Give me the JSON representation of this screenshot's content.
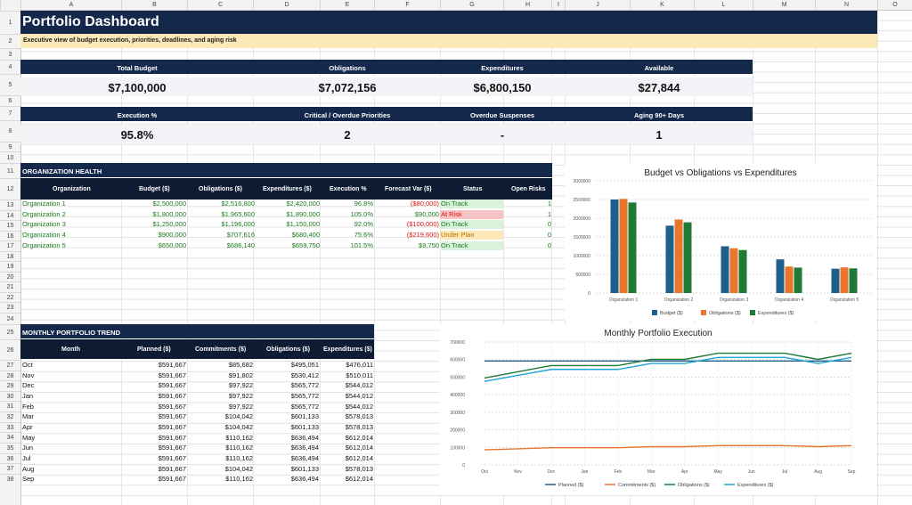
{
  "columns": [
    "",
    "A",
    "B",
    "C",
    "D",
    "E",
    "F",
    "G",
    "H",
    "I",
    "J",
    "K",
    "L",
    "M",
    "N",
    "O"
  ],
  "rows": [
    "1",
    "2",
    "3",
    "4",
    "5",
    "6",
    "7",
    "8",
    "9",
    "10",
    "11",
    "12",
    "13",
    "14",
    "15",
    "16",
    "17",
    "18",
    "19",
    "20",
    "21",
    "22",
    "23",
    "24",
    "25",
    "26",
    "27",
    "28",
    "29",
    "30",
    "31",
    "32",
    "33",
    "34",
    "35",
    "36",
    "37",
    "38"
  ],
  "title": "Portfolio Dashboard",
  "subtitle": "Executive view of budget execution, priorities, deadlines, and aging risk",
  "kpis1": [
    {
      "label": "Total Budget",
      "value": "$7,100,000"
    },
    {
      "label": "Obligations",
      "value": "$7,072,156"
    },
    {
      "label": "Expenditures",
      "value": "$6,800,150"
    },
    {
      "label": "Available",
      "value": "$27,844"
    }
  ],
  "kpis2": [
    {
      "label": "Execution %",
      "value": "95.8%"
    },
    {
      "label": "Critical / Overdue Priorities",
      "value": "2"
    },
    {
      "label": "Overdue Suspenses",
      "value": "-"
    },
    {
      "label": "Aging 90+ Days",
      "value": "1"
    }
  ],
  "org": {
    "section": "ORGANIZATION HEALTH",
    "headers": [
      "Organization",
      "Budget ($)",
      "Obligations ($)",
      "Expenditures ($)",
      "Execution %",
      "Forecast Var ($)",
      "Status",
      "Open Risks"
    ],
    "rows": [
      [
        "Organization 1",
        "$2,500,000",
        "$2,516,800",
        "$2,420,000",
        "96.8%",
        "($80,000)",
        "On Track",
        "1"
      ],
      [
        "Organization 2",
        "$1,800,000",
        "$1,965,600",
        "$1,890,000",
        "105.0%",
        "$90,000",
        "At Risk",
        "1"
      ],
      [
        "Organization 3",
        "$1,250,000",
        "$1,196,000",
        "$1,150,000",
        "92.0%",
        "($100,000)",
        "On Track",
        "0"
      ],
      [
        "Organization 4",
        "$900,000",
        "$707,616",
        "$680,400",
        "75.6%",
        "($219,600)",
        "Under Plan",
        "0"
      ],
      [
        "Organization 5",
        "$650,000",
        "$686,140",
        "$659,750",
        "101.5%",
        "$9,750",
        "On Track",
        "0"
      ]
    ],
    "status_colors": {
      "On Track": "#d9f2dc",
      "At Risk": "#f6c4c4",
      "Under Plan": "#fbe9b7"
    },
    "status_text_colors": {
      "On Track": "#1a7a1a",
      "At Risk": "#d11",
      "Under Plan": "#c56a00"
    }
  },
  "trend": {
    "section": "MONTHLY PORTFOLIO TREND",
    "headers": [
      "Month",
      "Planned ($)",
      "Commitments ($)",
      "Obligations ($)",
      "Expenditures ($)"
    ],
    "rows": [
      [
        "Oct",
        "$591,667",
        "$85,682",
        "$495,051",
        "$476,011"
      ],
      [
        "Nov",
        "$591,667",
        "$91,802",
        "$530,412",
        "$510,011"
      ],
      [
        "Dec",
        "$591,667",
        "$97,922",
        "$565,772",
        "$544,012"
      ],
      [
        "Jan",
        "$591,667",
        "$97,922",
        "$565,772",
        "$544,012"
      ],
      [
        "Feb",
        "$591,667",
        "$97,922",
        "$565,772",
        "$544,012"
      ],
      [
        "Mar",
        "$591,667",
        "$104,042",
        "$601,133",
        "$578,013"
      ],
      [
        "Apr",
        "$591,667",
        "$104,042",
        "$601,133",
        "$578,013"
      ],
      [
        "May",
        "$591,667",
        "$110,162",
        "$636,494",
        "$612,014"
      ],
      [
        "Jun",
        "$591,667",
        "$110,162",
        "$636,494",
        "$612,014"
      ],
      [
        "Jul",
        "$591,667",
        "$110,162",
        "$636,494",
        "$612,014"
      ],
      [
        "Aug",
        "$591,667",
        "$104,042",
        "$601,133",
        "$578,013"
      ],
      [
        "Sep",
        "$591,667",
        "$110,162",
        "$636,494",
        "$612,014"
      ]
    ]
  },
  "colors": {
    "navy": "#14284b",
    "budget": "#1f5f8b",
    "obligations": "#e8762c",
    "expenditures": "#1f7a36",
    "planned": "#1f5f8b",
    "commitments": "#e8762c",
    "oblig_line": "#1f7a36",
    "exp_line": "#1fa3d9"
  },
  "chart_data": [
    {
      "type": "bar",
      "title": "Budget vs Obligations vs Expenditures",
      "categories": [
        "Organization 1",
        "Organization 2",
        "Organization 3",
        "Organization 4",
        "Organization 5"
      ],
      "series": [
        {
          "name": "Budget ($)",
          "values": [
            2500000,
            1800000,
            1250000,
            900000,
            650000
          ]
        },
        {
          "name": "Obligations ($)",
          "values": [
            2516800,
            1965600,
            1196000,
            707616,
            686140
          ]
        },
        {
          "name": "Expenditures ($)",
          "values": [
            2420000,
            1890000,
            1150000,
            680400,
            659750
          ]
        }
      ],
      "yticks": [
        "0",
        "500000",
        "1000000",
        "1500000",
        "2000000",
        "2500000",
        "3000000"
      ],
      "ylim": [
        0,
        3000000
      ],
      "grid": true,
      "legend": "bottom"
    },
    {
      "type": "line",
      "title": "Monthly Portfolio Execution",
      "categories": [
        "Oct",
        "Nov",
        "Dec",
        "Jan",
        "Feb",
        "Mar",
        "Apr",
        "May",
        "Jun",
        "Jul",
        "Aug",
        "Sep"
      ],
      "series": [
        {
          "name": "Planned ($)",
          "values": [
            591667,
            591667,
            591667,
            591667,
            591667,
            591667,
            591667,
            591667,
            591667,
            591667,
            591667,
            591667
          ]
        },
        {
          "name": "Commitments ($)",
          "values": [
            85682,
            91802,
            97922,
            97922,
            97922,
            104042,
            104042,
            110162,
            110162,
            110162,
            104042,
            110162
          ]
        },
        {
          "name": "Obligations ($)",
          "values": [
            495051,
            530412,
            565772,
            565772,
            565772,
            601133,
            601133,
            636494,
            636494,
            636494,
            601133,
            636494
          ]
        },
        {
          "name": "Expenditures ($)",
          "values": [
            476011,
            510011,
            544012,
            544012,
            544012,
            578013,
            578013,
            612014,
            612014,
            612014,
            578013,
            612014
          ]
        }
      ],
      "yticks": [
        "0",
        "100000",
        "200000",
        "300000",
        "400000",
        "500000",
        "600000",
        "700000"
      ],
      "ylim": [
        0,
        700000
      ],
      "grid": true,
      "legend": "bottom"
    }
  ]
}
